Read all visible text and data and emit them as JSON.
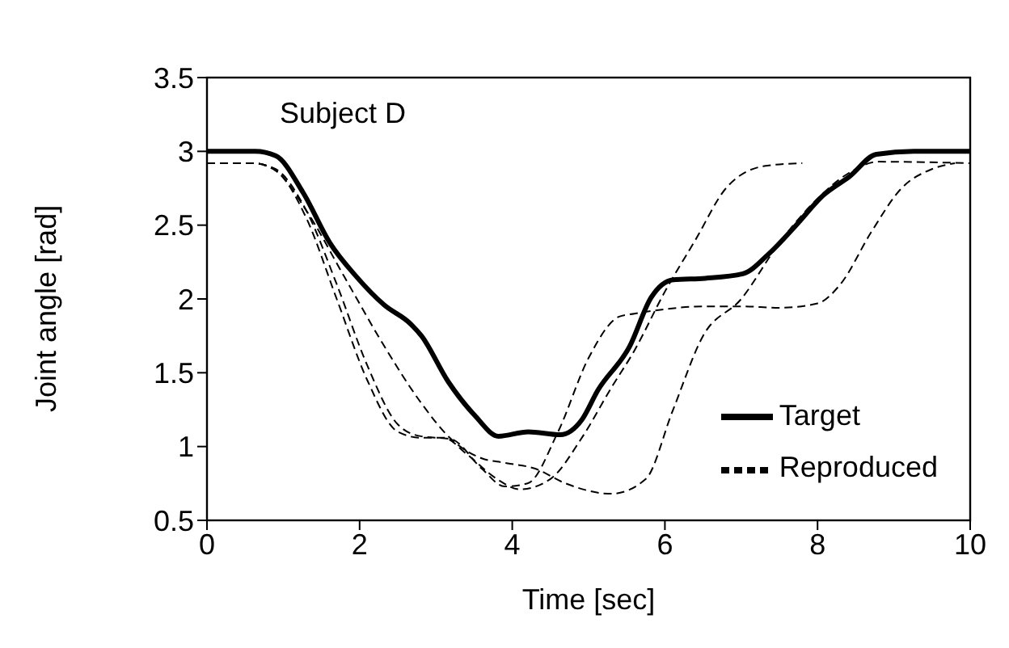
{
  "chart_data": {
    "type": "line",
    "xlabel": "Time [sec]",
    "ylabel": "Joint angle [rad]",
    "annotations": [
      "Subject D"
    ],
    "xlim": [
      0,
      10
    ],
    "xticks": [
      0,
      2,
      4,
      6,
      8,
      10
    ],
    "ylim": [
      0.5,
      3.5
    ],
    "yticks": [
      0.5,
      1,
      1.5,
      2,
      2.5,
      3,
      3.5
    ],
    "grid": false,
    "legend": "bottom right",
    "marker": "none",
    "series": [
      {
        "name": "Target",
        "color": "#000000",
        "line_style": "solid",
        "x": [
          0,
          0.63,
          0.9,
          1.26,
          1.61,
          1.96,
          2.32,
          2.67,
          2.81,
          3.16,
          3.51,
          3.82,
          4.21,
          4.63,
          4.91,
          5.12,
          5.54,
          5.82,
          6.11,
          6.53,
          7.02,
          7.37,
          7.72,
          8.07,
          8.42,
          8.77,
          9.26,
          10
        ],
        "values": [
          3.0,
          3.0,
          2.97,
          2.72,
          2.38,
          2.15,
          1.96,
          1.83,
          1.75,
          1.44,
          1.21,
          1.07,
          1.1,
          1.08,
          1.18,
          1.38,
          1.68,
          2.01,
          2.13,
          2.14,
          2.17,
          2.31,
          2.5,
          2.7,
          2.83,
          2.98,
          3.0,
          3.0
        ]
      },
      {
        "name": "Reproduced",
        "color": "#000000",
        "line_style": "dashed",
        "x": [
          0,
          0.6,
          0.9,
          1.3,
          1.7,
          2.1,
          2.5,
          2.8,
          3.2,
          3.6,
          3.9,
          4.2,
          4.6,
          5.0,
          5.4,
          5.6,
          6.0,
          6.5,
          7.0,
          7.5,
          8.0,
          8.3,
          8.7,
          9.1,
          9.5,
          9.8
        ],
        "values": [
          2.92,
          2.92,
          2.88,
          2.6,
          2.1,
          1.55,
          1.15,
          1.07,
          1.05,
          0.85,
          0.73,
          0.75,
          1.1,
          1.6,
          1.88,
          1.9,
          1.93,
          1.95,
          1.95,
          1.94,
          1.97,
          2.1,
          2.45,
          2.75,
          2.88,
          2.92
        ]
      },
      {
        "color": "#000000",
        "line_style": "dashed",
        "x": [
          0,
          0.6,
          0.9,
          1.3,
          1.7,
          2.1,
          2.5,
          2.8,
          3.1,
          3.4,
          3.8,
          4.1,
          4.5,
          4.9,
          5.3,
          5.6,
          6.0,
          6.4,
          6.8,
          7.3,
          7.8
        ],
        "values": [
          2.92,
          2.92,
          2.87,
          2.55,
          2.0,
          1.45,
          1.1,
          1.06,
          1.06,
          0.95,
          0.78,
          0.71,
          0.78,
          1.05,
          1.4,
          1.65,
          2.05,
          2.4,
          2.75,
          2.9,
          2.92
        ]
      },
      {
        "color": "#000000",
        "line_style": "dashed",
        "x": [
          0,
          0.6,
          0.9,
          1.3,
          1.8,
          2.3,
          2.8,
          3.2,
          3.6,
          3.9,
          4.3,
          4.7,
          5.3,
          5.75,
          6.1,
          6.5,
          7.0,
          7.5,
          8.0,
          8.4,
          8.8,
          10
        ],
        "values": [
          2.92,
          2.92,
          2.87,
          2.6,
          2.15,
          1.7,
          1.3,
          1.05,
          0.92,
          0.89,
          0.85,
          0.75,
          0.68,
          0.78,
          1.24,
          1.75,
          2.0,
          2.38,
          2.68,
          2.85,
          2.93,
          2.92
        ]
      }
    ]
  }
}
